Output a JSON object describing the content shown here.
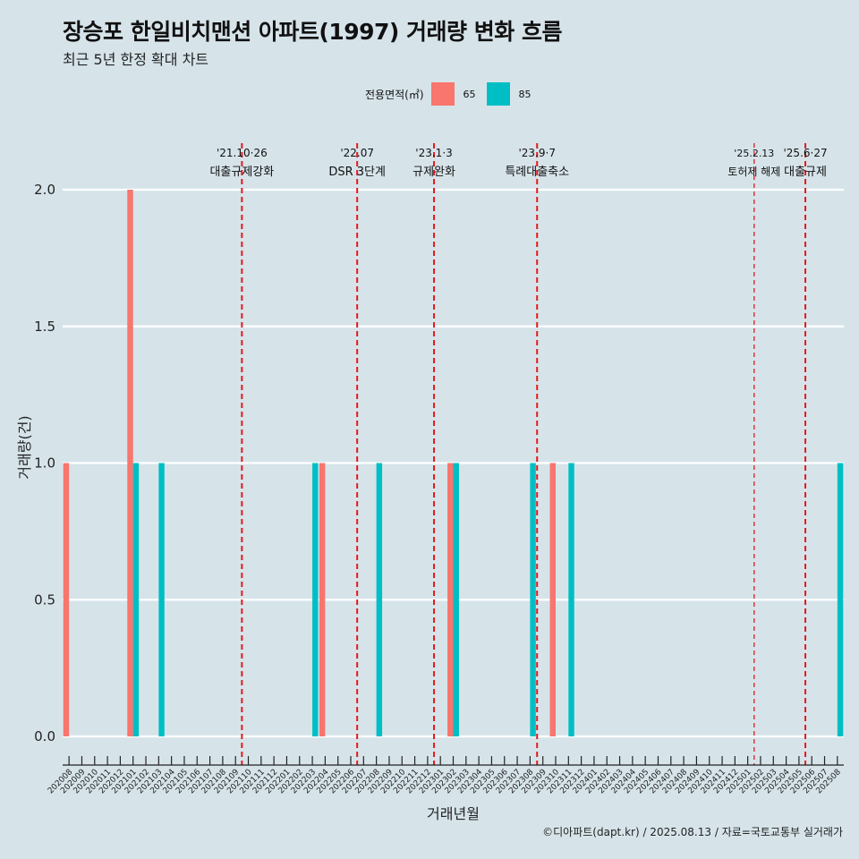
{
  "title": "장승포 한일비치맨션 아파트(1997) 거래량 변화 흐름",
  "subtitle": "최근 5년 한정 확대 차트",
  "legend": {
    "title": "전용면적(㎡)",
    "items": [
      {
        "label": "65",
        "color": "#f8766d"
      },
      {
        "label": "85",
        "color": "#00bfc4"
      }
    ]
  },
  "caption": "©디아파트(dapt.kr) / 2025.08.13 / 자료=국토교통부 실거래가",
  "chart_data": {
    "type": "bar",
    "xlabel": "거래년월",
    "ylabel": "거래량(건)",
    "ylim": [
      0,
      2
    ],
    "yticks": [
      0,
      0.5,
      1,
      1.5,
      2
    ],
    "ytick_labels": [
      "0.0",
      "0.5",
      "1.0",
      "1.5",
      "2.0"
    ],
    "grid": true,
    "categories": [
      "202008",
      "202009",
      "202010",
      "202011",
      "202012",
      "202101",
      "202102",
      "202103",
      "202104",
      "202105",
      "202106",
      "202107",
      "202108",
      "202109",
      "202110",
      "202111",
      "202112",
      "202201",
      "202202",
      "202203",
      "202204",
      "202205",
      "202206",
      "202207",
      "202208",
      "202209",
      "202210",
      "202211",
      "202212",
      "202301",
      "202302",
      "202303",
      "202304",
      "202305",
      "202306",
      "202307",
      "202308",
      "202309",
      "202310",
      "202311",
      "202312",
      "202401",
      "202402",
      "202403",
      "202404",
      "202405",
      "202406",
      "202407",
      "202408",
      "202409",
      "202410",
      "202411",
      "202412",
      "202501",
      "202502",
      "202503",
      "202504",
      "202505",
      "202506",
      "202507",
      "202508"
    ],
    "series": [
      {
        "name": "65",
        "color": "#f8766d",
        "values": [
          1,
          0,
          0,
          0,
          0,
          2,
          0,
          0,
          0,
          0,
          0,
          0,
          0,
          0,
          0,
          0,
          0,
          0,
          0,
          0,
          1,
          0,
          0,
          0,
          0,
          0,
          0,
          0,
          0,
          0,
          1,
          0,
          0,
          0,
          0,
          0,
          0,
          0,
          1,
          0,
          0,
          0,
          0,
          0,
          0,
          0,
          0,
          0,
          0,
          0,
          0,
          0,
          0,
          0,
          0,
          0,
          0,
          0,
          0,
          0,
          0
        ]
      },
      {
        "name": "85",
        "color": "#00bfc4",
        "values": [
          0,
          0,
          0,
          0,
          0,
          1,
          0,
          1,
          0,
          0,
          0,
          0,
          0,
          0,
          0,
          0,
          0,
          0,
          0,
          1,
          0,
          0,
          0,
          0,
          1,
          0,
          0,
          0,
          0,
          0,
          1,
          0,
          0,
          0,
          0,
          0,
          1,
          0,
          0,
          1,
          0,
          0,
          0,
          0,
          0,
          0,
          0,
          0,
          0,
          0,
          0,
          0,
          0,
          0,
          0,
          0,
          0,
          0,
          0,
          0,
          1
        ]
      }
    ],
    "annotations": [
      {
        "x": 14.0,
        "date": "'21.10·26",
        "text": "대출규제강화",
        "style": "dashed-bold"
      },
      {
        "x": 23.0,
        "date": "'22.07",
        "text": "DSR 3단계",
        "style": "dashed-bold"
      },
      {
        "x": 29.0,
        "date": "'23.1·3",
        "text": "규제완화",
        "style": "dashed-bold"
      },
      {
        "x": 37.05,
        "date": "'23.9·7",
        "text": "특례대출축소",
        "style": "dashed-bold"
      },
      {
        "x": 54.0,
        "date": "'25.2.13",
        "text": "토허제 해제",
        "style": "dashed-thin"
      },
      {
        "x": 58.0,
        "date": "'25.6·27",
        "text": "대출규제",
        "style": "dashed-bold"
      }
    ]
  }
}
